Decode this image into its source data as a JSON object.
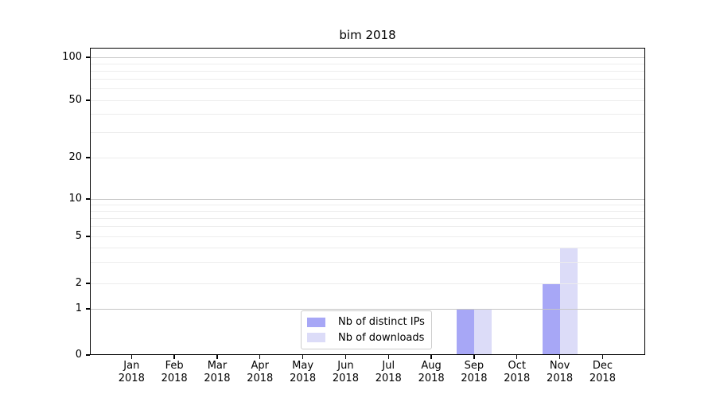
{
  "chart_data": {
    "type": "bar",
    "title": "bim 2018",
    "categories": [
      "Jan 2018",
      "Feb 2018",
      "Mar 2018",
      "Apr 2018",
      "May 2018",
      "Jun 2018",
      "Jul 2018",
      "Aug 2018",
      "Sep 2018",
      "Oct 2018",
      "Nov 2018",
      "Dec 2018"
    ],
    "series": [
      {
        "name": "Nb of distinct IPs",
        "color": "#a7a7f6",
        "values": [
          0,
          0,
          0,
          0,
          0,
          0,
          0,
          0,
          1,
          0,
          2,
          0
        ]
      },
      {
        "name": "Nb of downloads",
        "color": "#dcdcf8",
        "values": [
          0,
          0,
          0,
          0,
          0,
          0,
          0,
          0,
          1,
          0,
          4,
          0
        ]
      }
    ],
    "yscale": "symlog",
    "ylim": [
      0,
      100
    ],
    "y_ticks": [
      0,
      1,
      2,
      5,
      10,
      20,
      50,
      100
    ],
    "y_major_gridlines": [
      1,
      10,
      100
    ],
    "y_minor_gridlines": [
      2,
      3,
      4,
      5,
      6,
      7,
      8,
      9,
      20,
      30,
      40,
      50,
      60,
      70,
      80,
      90
    ],
    "grid": true,
    "legend_position": "lower center inside"
  },
  "colors": {
    "major_grid": "#c6c6c6",
    "minor_grid": "#ededed",
    "spine": "#000000",
    "legend_border": "#cccccc",
    "text": "#000000",
    "background": "#ffffff"
  }
}
